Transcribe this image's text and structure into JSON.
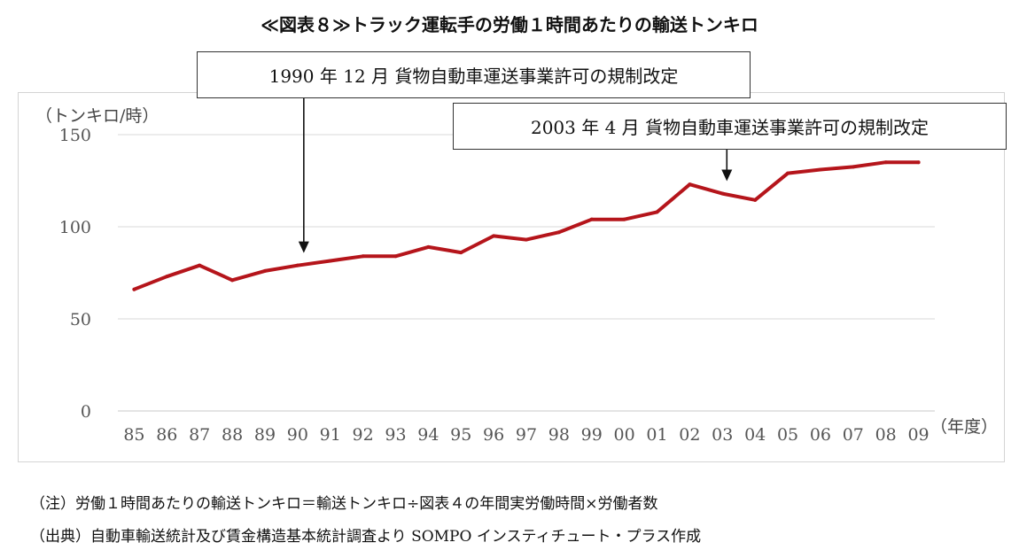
{
  "title": "≪図表８≫トラック運転手の労働１時間あたりの輸送トンキロ",
  "chart_data": {
    "type": "line",
    "title": "≪図表８≫トラック運転手の労働１時間あたりの輸送トンキロ",
    "ylabel": "（トンキロ/時）",
    "xlabel": "（年度）",
    "categories": [
      "85",
      "86",
      "87",
      "88",
      "89",
      "90",
      "91",
      "92",
      "93",
      "94",
      "95",
      "96",
      "97",
      "98",
      "99",
      "00",
      "01",
      "02",
      "03",
      "04",
      "05",
      "06",
      "07",
      "08",
      "09"
    ],
    "series": [
      {
        "values": [
          66,
          73,
          79,
          71,
          76,
          79,
          81.5,
          84,
          84,
          89,
          86,
          95,
          93,
          97,
          104,
          104,
          108,
          123,
          118,
          114.5,
          129,
          131,
          132.5,
          135,
          135
        ],
        "color": "#b5151b"
      }
    ],
    "ylim": [
      0,
      150
    ],
    "yticks": [
      0,
      50,
      100,
      150
    ],
    "grid": true,
    "annotations": [
      {
        "text": "1990 年 12 月  貨物自動車運送事業許可の規制改定",
        "x": "90"
      },
      {
        "text": "2003 年 4 月  貨物自動車運送事業許可の規制改定",
        "x": "03"
      }
    ]
  },
  "notes": [
    "（注）労働１時間あたりの輸送トンキロ＝輸送トンキロ÷図表４の年間実労働時間×労働者数",
    "（出典）自動車輸送統計及び賃金構造基本統計調査より SOMPO インスティチュート・プラス作成"
  ]
}
